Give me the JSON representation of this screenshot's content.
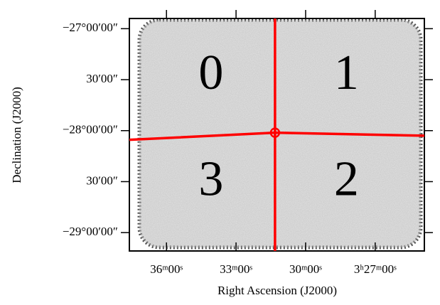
{
  "chart_data": {
    "type": "line",
    "xlabel": "Right Ascension (J2000)",
    "ylabel": "Declination (J2000)",
    "xlim": [
      54.4,
      51.22
    ],
    "ylim": [
      -29.18,
      -26.9
    ],
    "xticks": [
      {
        "value": 54.0,
        "label": "36ᵐ00ˢ"
      },
      {
        "value": 53.25,
        "label": "33ᵐ00ˢ"
      },
      {
        "value": 52.5,
        "label": "30ᵐ00ˢ"
      },
      {
        "value": 51.75,
        "label": "3ʰ27ᵐ00ˢ"
      }
    ],
    "yticks": [
      {
        "value": -27.0,
        "label": "−27°00′00″"
      },
      {
        "value": -27.5,
        "label": "30′00″"
      },
      {
        "value": -28.0,
        "label": "−28°00′00″"
      },
      {
        "value": -28.5,
        "label": "30′00″"
      },
      {
        "value": -29.0,
        "label": "−29°00′00″"
      }
    ],
    "series": [
      {
        "color": "#ff0000",
        "x": [
          54.4,
          52.83,
          51.22
        ],
        "y": [
          -28.09,
          -28.02,
          -28.05
        ]
      },
      {
        "color": "#ff0000",
        "x": [
          52.83,
          52.83
        ],
        "y": [
          -29.18,
          -26.9
        ]
      }
    ],
    "center": {
      "x": 52.83,
      "y": -28.02,
      "color": "#ff0000"
    },
    "annotations": [
      {
        "text": "0",
        "x": 53.52,
        "y": -27.48
      },
      {
        "text": "1",
        "x": 52.06,
        "y": -27.48
      },
      {
        "text": "3",
        "x": 53.52,
        "y": -28.52
      },
      {
        "text": "2",
        "x": 52.06,
        "y": -28.52
      }
    ]
  }
}
